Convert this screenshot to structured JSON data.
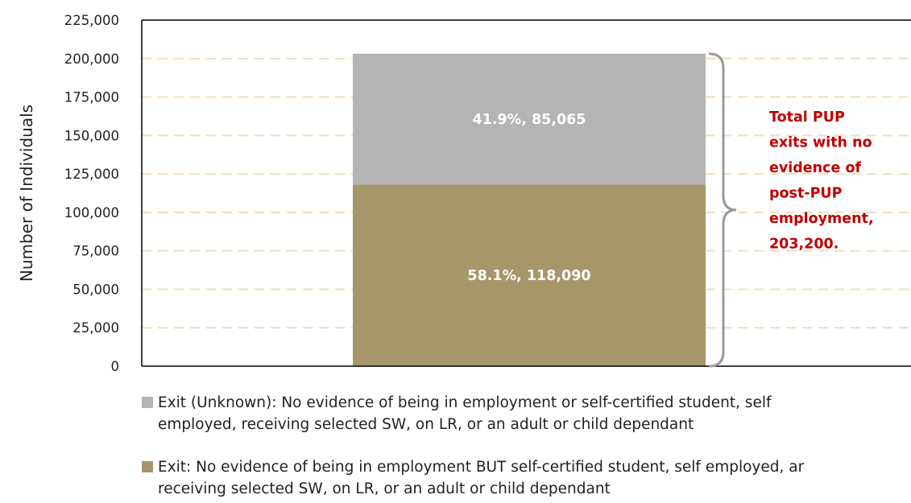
{
  "chart_data": {
    "type": "bar",
    "stacked": true,
    "categories": [
      ""
    ],
    "series": [
      {
        "name": "Exit: No evidence of being in employment BUT self-certified student, self employed, and receiving selected SW, on LR, or an adult or child dependant",
        "values": [
          118090
        ],
        "label": "58.1%, 118,090",
        "color": "#a69669"
      },
      {
        "name": "Exit (Unknown): No evidence of being in employment or self-certified student, self employed, receiving selected SW, on LR, or an adult or child dependant",
        "values": [
          85065
        ],
        "label": "41.9%, 85,065",
        "color": "#b4b4b4"
      }
    ],
    "ylabel": "Number of Individuals",
    "xlabel": "",
    "ylim": [
      0,
      225000
    ],
    "yticks": [
      "0",
      "25,000",
      "50,000",
      "75,000",
      "100,000",
      "125,000",
      "150,000",
      "175,000",
      "200,000",
      "225,000"
    ],
    "grid": true,
    "gridline_color": "#f2dcbe",
    "legend_position": "bottom",
    "annotation": {
      "lines": [
        "Total PUP",
        "exits with no",
        "evidence of",
        "post-PUP",
        "employment,",
        "203,200."
      ],
      "value": 203200,
      "color": "#c00000"
    }
  },
  "legend": {
    "item1_line1": "Exit (Unknown): No evidence of being in employment or self-certified student, self",
    "item1_line2": "employed, receiving selected SW, on LR, or an adult or child dependant",
    "item2_line1": "Exit: No evidence of being in employment BUT self-certified student, self employed, ar",
    "item2_line2": "receiving selected SW, on LR, or an adult or child dependant"
  }
}
